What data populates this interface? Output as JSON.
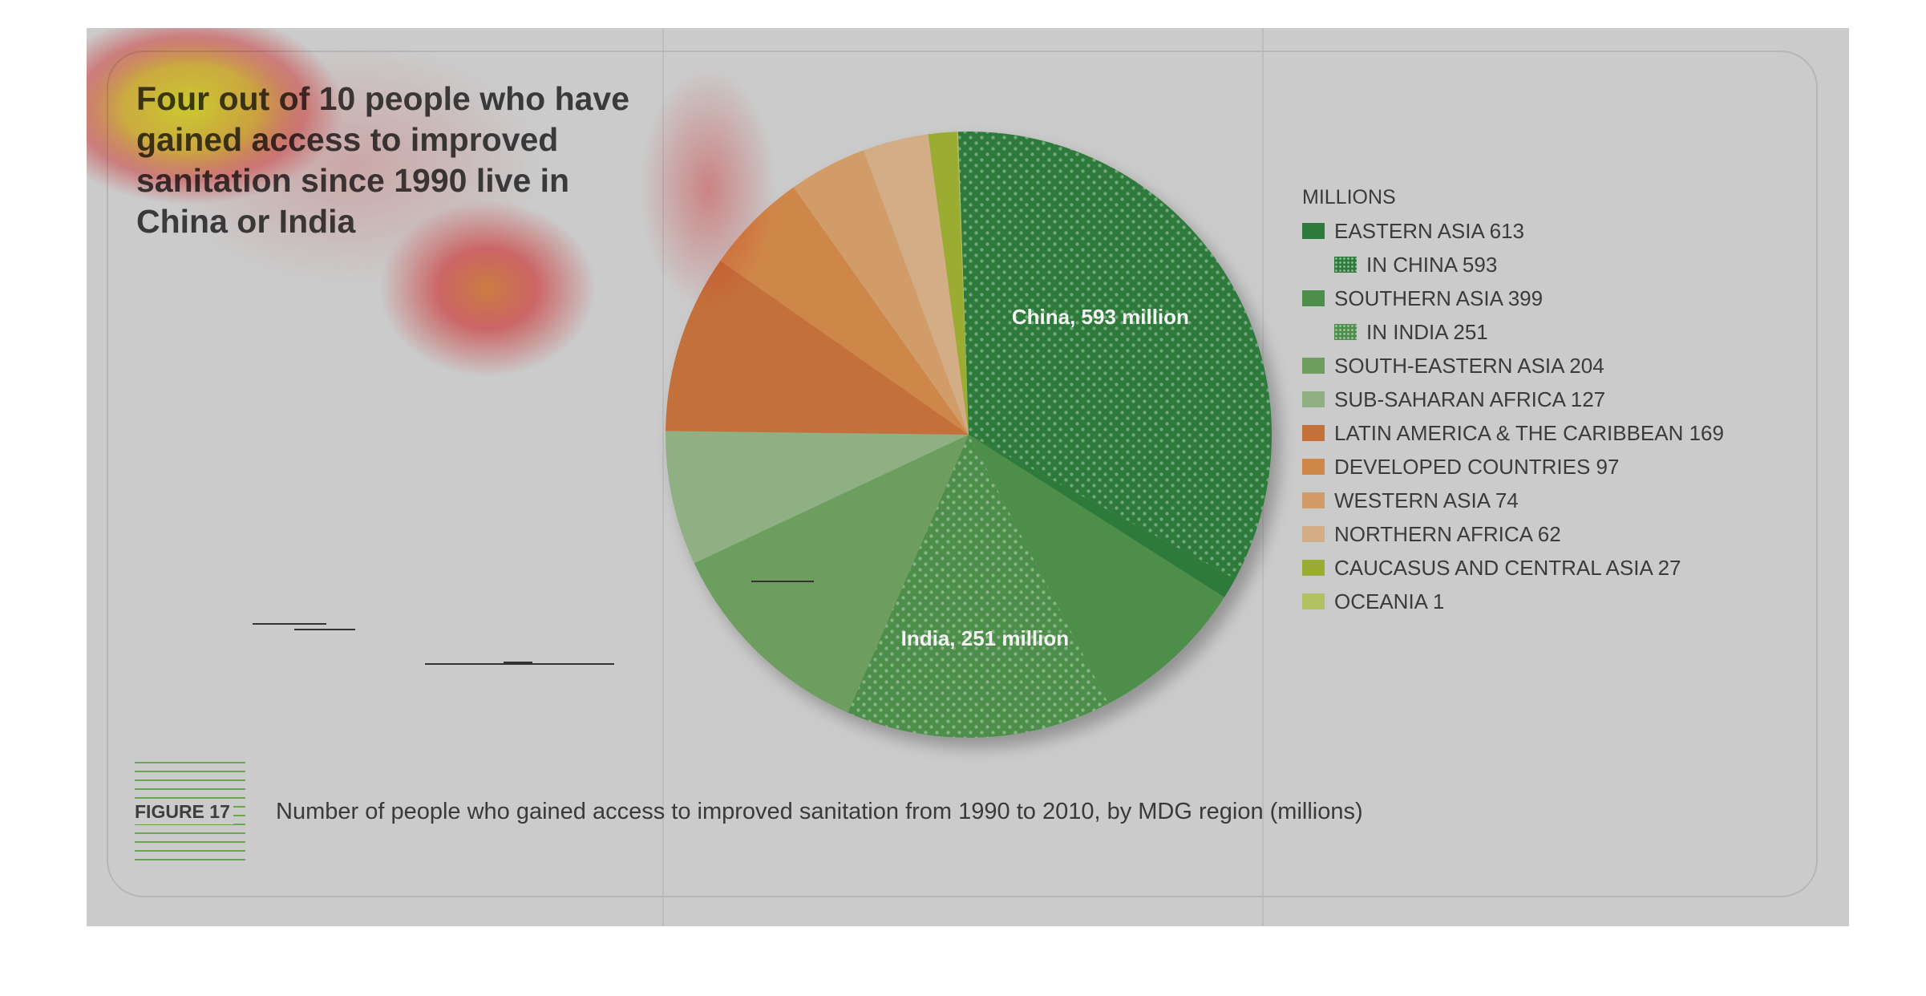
{
  "headline": "Four out of 10 people who have gained access to improved sanitation since 1990 live in China or India",
  "figure_label": "FIGURE 17",
  "caption": "Number of people who gained access to improved sanitation from 1990 to 2010, by MDG region (millions)",
  "chart_data": {
    "type": "pie",
    "unit_label": "MILLIONS",
    "title": "Number of people who gained access to improved sanitation from 1990 to 2010, by MDG region (millions)",
    "legend_position": "right",
    "slices": [
      {
        "name": "EASTERN ASIA",
        "value": 613,
        "legend": "EASTERN ASIA 613",
        "color": "#2d7a3a",
        "sub": {
          "name": "IN CHINA",
          "value": 593,
          "legend": "IN CHINA 593",
          "label": "China, 593 million"
        }
      },
      {
        "name": "SOUTHERN ASIA",
        "value": 399,
        "legend": "SOUTHERN ASIA 399",
        "color": "#4d8e4b",
        "sub": {
          "name": "IN INDIA",
          "value": 251,
          "legend": "IN INDIA 251",
          "label": "India, 251 million"
        }
      },
      {
        "name": "SOUTH-EASTERN ASIA",
        "value": 204,
        "legend": "SOUTH-EASTERN ASIA 204",
        "color": "#6e9e5e"
      },
      {
        "name": "SUB-SAHARAN AFRICA",
        "value": 127,
        "legend": "SUB-SAHARAN AFRICA 127",
        "color": "#8fb082"
      },
      {
        "name": "LATIN AMERICA & THE CARIBBEAN",
        "value": 169,
        "legend": "LATIN AMERICA & THE CARIBBEAN 169",
        "color": "#c4703a"
      },
      {
        "name": "DEVELOPED COUNTRIES",
        "value": 97,
        "legend": "DEVELOPED COUNTRIES 97",
        "color": "#cf8748"
      },
      {
        "name": "WESTERN ASIA",
        "value": 74,
        "legend": "WESTERN ASIA 74",
        "color": "#d19c68"
      },
      {
        "name": "NORTHERN AFRICA",
        "value": 62,
        "legend": "NORTHERN AFRICA 62",
        "color": "#d2ad85"
      },
      {
        "name": "CAUCASUS AND CENTRAL ASIA",
        "value": 27,
        "legend": "CAUCASUS AND CENTRAL ASIA 27",
        "color": "#9aad30"
      },
      {
        "name": "OCEANIA",
        "value": 1,
        "legend": "OCEANIA 1",
        "color": "#b2c262"
      }
    ],
    "pie_order": [
      "EASTERN ASIA",
      "SOUTHERN ASIA",
      "SOUTH-EASTERN ASIA",
      "SUB-SAHARAN AFRICA",
      "LATIN AMERICA & THE CARIBBEAN",
      "DEVELOPED COUNTRIES",
      "WESTERN ASIA",
      "NORTHERN AFRICA",
      "CAUCASUS AND CENTRAL ASIA",
      "OCEANIA"
    ]
  },
  "heatmap_overlay": {
    "present": true,
    "spots": [
      {
        "intensity": 1.0,
        "color": "#ffff33"
      },
      {
        "intensity": 0.7,
        "color": "#ff8c42"
      },
      {
        "intensity": 0.5,
        "color": "#ff4d4d"
      }
    ]
  }
}
